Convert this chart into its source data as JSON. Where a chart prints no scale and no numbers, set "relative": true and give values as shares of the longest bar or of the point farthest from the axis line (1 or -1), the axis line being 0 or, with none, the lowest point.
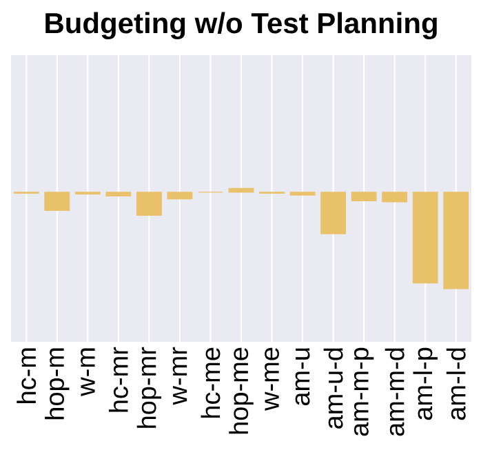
{
  "chart_data": {
    "type": "bar",
    "title": "Budgeting w/o Test Planning",
    "categories": [
      "hc-m",
      "hop-m",
      "w-m",
      "hc-mr",
      "hop-mr",
      "w-mr",
      "hc-me",
      "hop-me",
      "w-me",
      "am-u",
      "am-u-d",
      "am-m-p",
      "am-m-d",
      "am-l-p",
      "am-l-d"
    ],
    "values": [
      -0.01,
      -0.19,
      -0.02,
      -0.04,
      -0.24,
      -0.07,
      0,
      0.04,
      -0.01,
      -0.03,
      -0.43,
      -0.09,
      -0.1,
      -0.94,
      -1
    ],
    "color": "#e9c16b",
    "relative": true,
    "grid": "x"
  }
}
